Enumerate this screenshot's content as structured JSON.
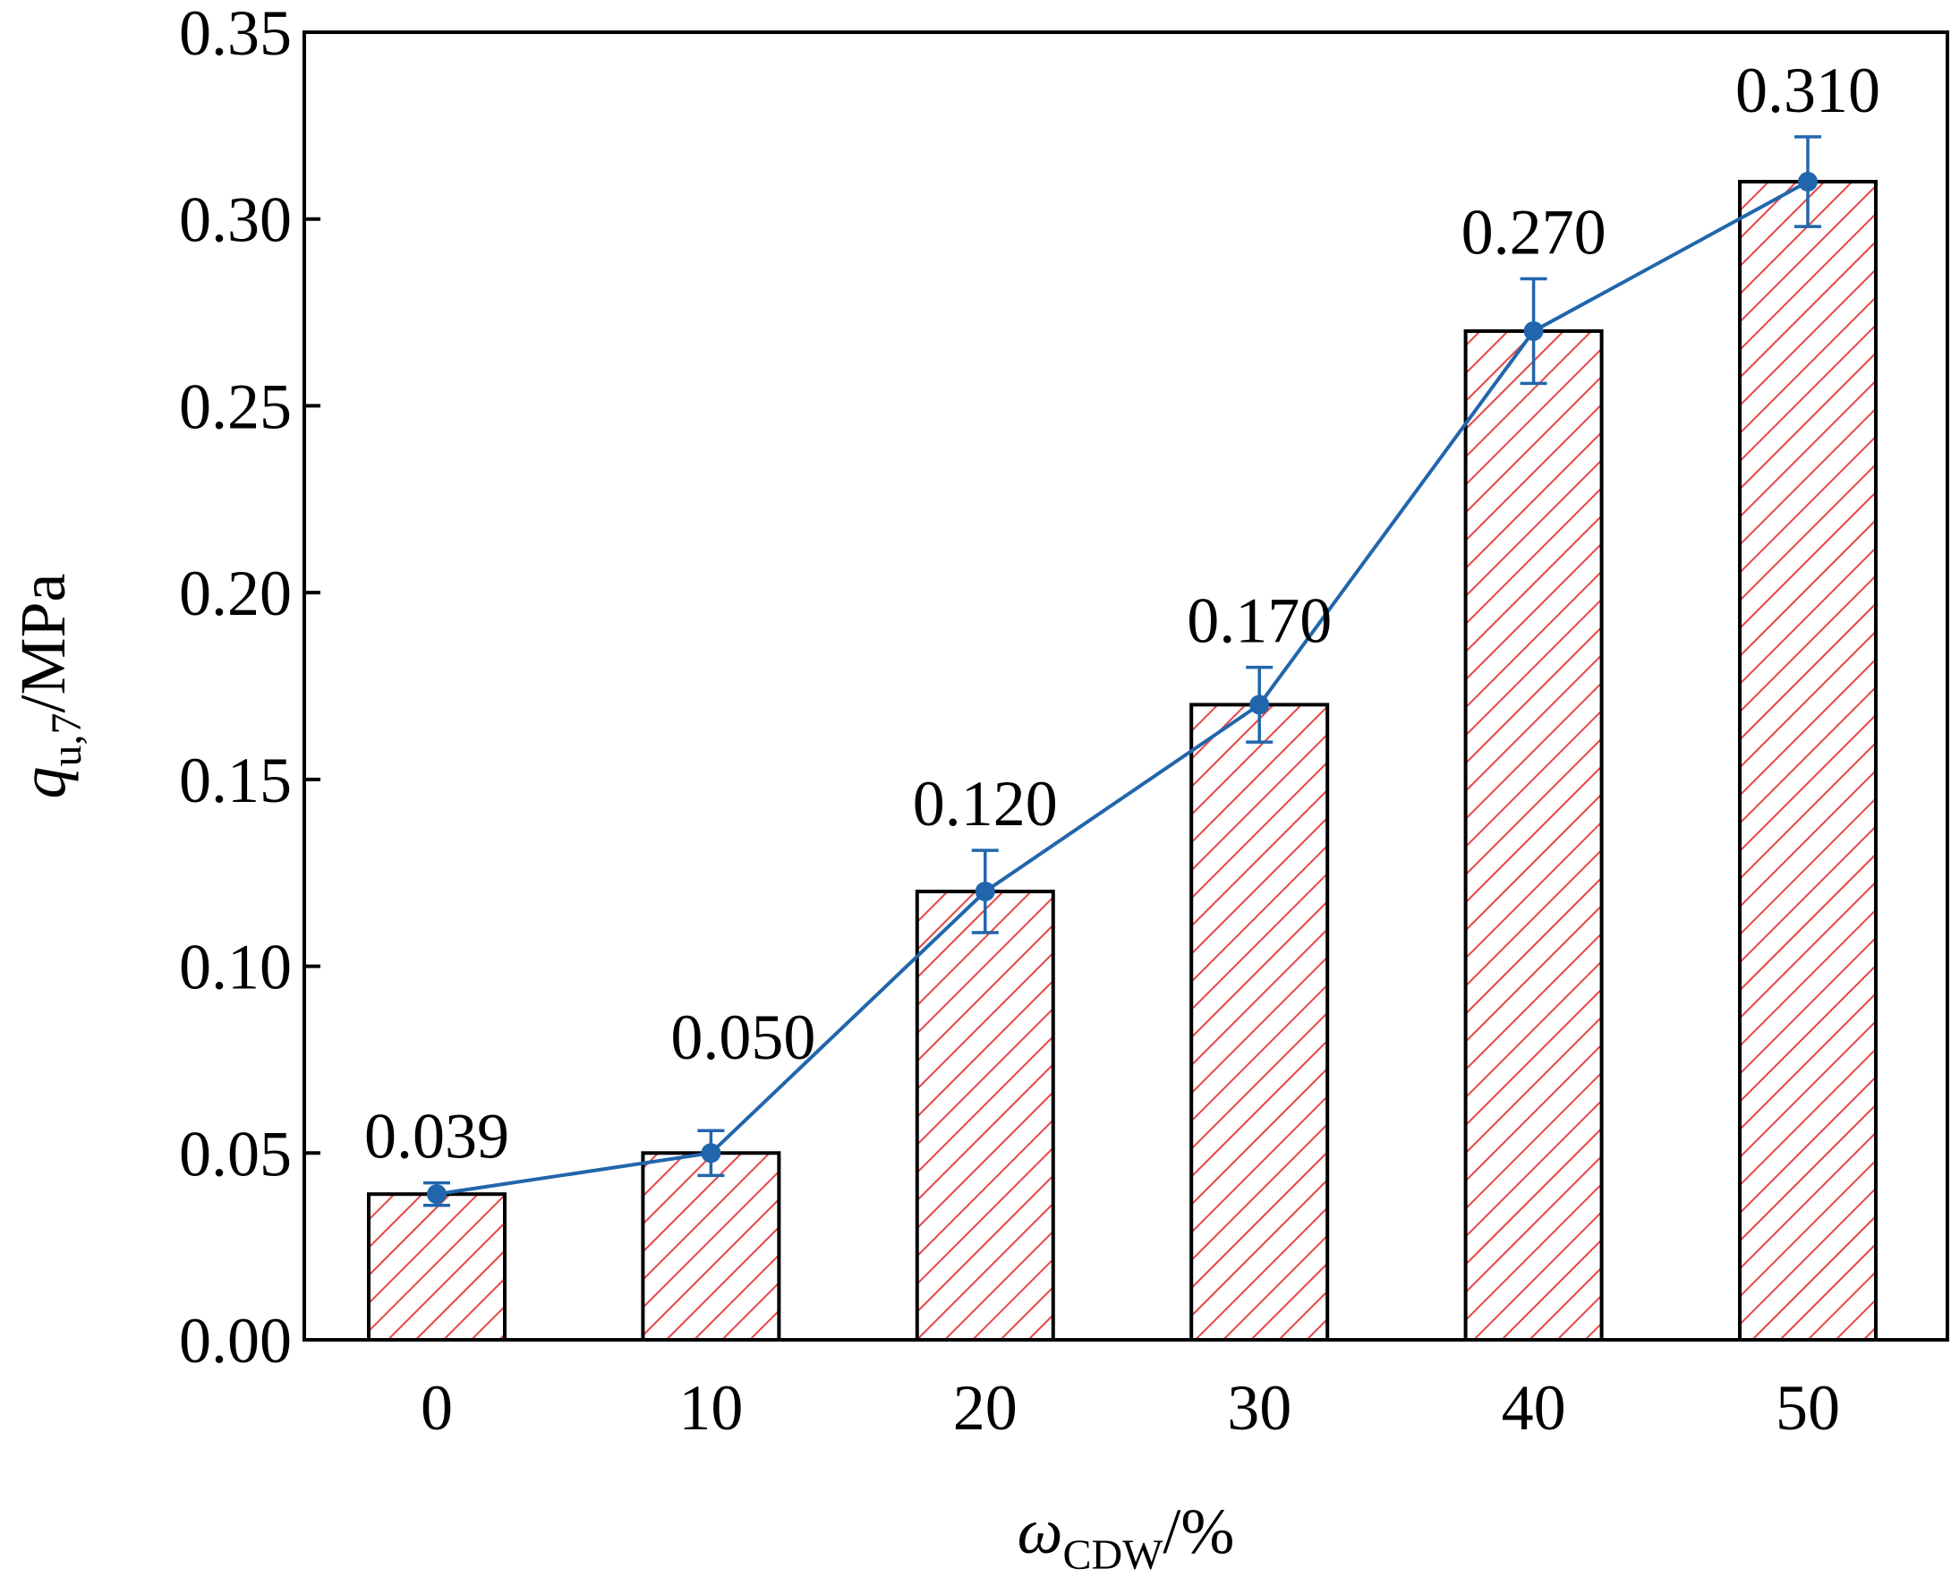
{
  "chart_data": {
    "type": "bar",
    "x": [
      0,
      10,
      20,
      30,
      40,
      50
    ],
    "categories": [
      "0",
      "10",
      "20",
      "30",
      "40",
      "50"
    ],
    "values": [
      0.039,
      0.05,
      0.12,
      0.17,
      0.27,
      0.31
    ],
    "value_labels": [
      "0.039",
      "0.050",
      "0.120",
      "0.170",
      "0.270",
      "0.310"
    ],
    "line_series": {
      "values": [
        0.039,
        0.05,
        0.12,
        0.17,
        0.27,
        0.31
      ],
      "error": [
        0.003,
        0.006,
        0.011,
        0.01,
        0.014,
        0.012
      ],
      "color": "#2166ac"
    },
    "bar_style": {
      "hatch_color": "#e84545",
      "edge_color": "#000000",
      "fill": "#ffffff"
    },
    "xlabel": {
      "symbol": "ω",
      "subscript": "CDW",
      "unit": "/%"
    },
    "ylabel": {
      "symbol": "q",
      "subscript": "u,7",
      "unit": "/MPa"
    },
    "ylim": [
      0,
      0.35
    ],
    "yticks": [
      "0.00",
      "0.05",
      "0.10",
      "0.15",
      "0.20",
      "0.25",
      "0.30",
      "0.35"
    ],
    "grid": false,
    "legend": "none"
  }
}
